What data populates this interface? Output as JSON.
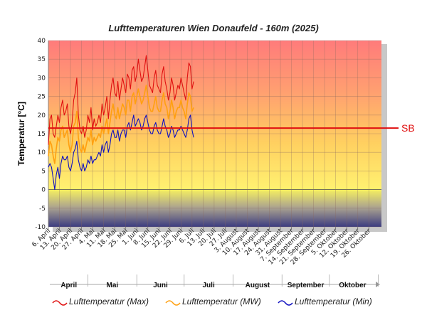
{
  "chart_data": {
    "type": "line",
    "title": "Lufttemperaturen Wien Donaufeld - 160m (2025)",
    "ylabel": "Temperatur [°C]",
    "ylim": [
      -10,
      40
    ],
    "yticks": [
      -10,
      -5,
      0,
      5,
      10,
      15,
      20,
      25,
      30,
      35,
      40
    ],
    "x_start": "6. April",
    "x_end": "2. November",
    "x_tick_labels": [
      "6. April",
      "13. April",
      "20. April",
      "27. April",
      "4. Mai",
      "11. Mai",
      "18. Mai",
      "25. Mai",
      "1. Juni",
      "8. Juni",
      "15. Juni",
      "22. Juni",
      "29. Juni",
      "6. Juli",
      "13. Juli",
      "20. Juli",
      "27. Juli",
      "3. August",
      "10. August",
      "17. August",
      "24. August",
      "31. August",
      "7. September",
      "14. September",
      "21. September",
      "28. September",
      "5. Oktober",
      "12. Oktober",
      "19. Oktober",
      "26. Oktober"
    ],
    "months": [
      "April",
      "Mai",
      "Juni",
      "Juli",
      "August",
      "September",
      "Oktober"
    ],
    "reference_line": {
      "label": "SB",
      "value": 16.5,
      "color": "#e01010"
    },
    "series": [
      {
        "name": "Lufttemperatur (Max)",
        "color": "#e01010",
        "values": [
          12,
          19,
          20,
          15,
          14,
          17,
          20,
          18,
          22,
          24,
          20,
          21,
          23,
          17,
          15,
          18,
          24,
          26,
          30,
          20,
          16,
          15,
          17,
          14,
          16,
          20,
          18,
          22,
          16,
          19,
          17,
          18,
          20,
          18,
          23,
          20,
          22,
          25,
          19,
          24,
          28,
          30,
          26,
          25,
          29,
          24,
          27,
          30,
          28,
          26,
          31,
          30,
          27,
          32,
          33,
          29,
          31,
          35,
          32,
          29,
          30,
          33,
          36,
          32,
          28,
          27,
          26,
          30,
          32,
          28,
          27,
          26,
          31,
          33,
          29,
          27,
          24,
          26,
          30,
          28,
          24,
          26,
          28,
          27,
          30,
          28,
          26,
          24,
          30,
          34,
          33,
          27,
          29
        ]
      },
      {
        "name": "Lufttemperatur (MW)",
        "color": "#ffa010",
        "values": [
          9,
          13,
          12,
          9,
          7,
          11,
          14,
          13,
          16,
          17,
          14,
          15,
          16,
          12,
          10,
          12,
          17,
          18,
          21,
          14,
          11,
          10,
          12,
          10,
          12,
          14,
          13,
          16,
          12,
          14,
          13,
          14,
          15,
          14,
          17,
          15,
          17,
          19,
          15,
          18,
          21,
          23,
          20,
          19,
          22,
          19,
          21,
          23,
          22,
          20,
          24,
          24,
          21,
          25,
          26,
          23,
          25,
          27,
          25,
          23,
          24,
          26,
          28,
          25,
          22,
          21,
          21,
          23,
          25,
          22,
          21,
          21,
          24,
          26,
          23,
          22,
          19,
          21,
          24,
          22,
          19,
          21,
          22,
          22,
          24,
          22,
          21,
          19,
          23,
          26,
          25,
          21,
          22
        ]
      },
      {
        "name": "Lufttemperatur (Min)",
        "color": "#1010c0",
        "values": [
          6,
          7,
          6,
          3,
          0,
          4,
          6,
          3,
          7,
          9,
          8,
          8,
          9,
          6,
          5,
          7,
          10,
          11,
          13,
          8,
          6,
          5,
          7,
          5,
          6,
          8,
          7,
          9,
          7,
          8,
          8,
          9,
          10,
          9,
          12,
          10,
          12,
          13,
          10,
          12,
          15,
          16,
          14,
          14,
          16,
          13,
          15,
          16,
          16,
          14,
          17,
          18,
          16,
          18,
          20,
          17,
          18,
          19,
          18,
          16,
          17,
          19,
          20,
          18,
          16,
          15,
          15,
          17,
          18,
          16,
          15,
          15,
          17,
          19,
          17,
          16,
          14,
          15,
          17,
          16,
          14,
          15,
          16,
          16,
          17,
          16,
          15,
          14,
          16,
          19,
          20,
          16,
          14
        ]
      }
    ]
  }
}
